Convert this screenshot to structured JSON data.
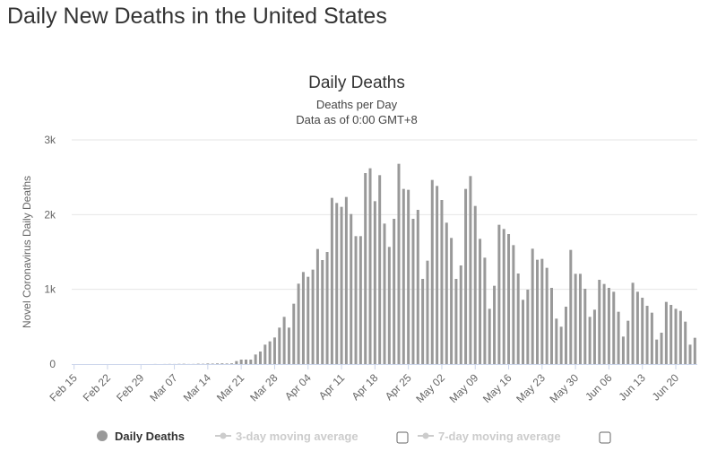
{
  "page_title": "Daily New Deaths in the United States",
  "chart_data": {
    "type": "bar",
    "title": "Daily Deaths",
    "subtitle_lines": [
      "Deaths per Day",
      "Data as of 0:00 GMT+8"
    ],
    "xlabel": "",
    "ylabel": "Novel Coronavirus Daily Deaths",
    "ylim": [
      0,
      3000
    ],
    "y_ticks": [
      {
        "value": 0,
        "label": "0"
      },
      {
        "value": 1000,
        "label": "1k"
      },
      {
        "value": 2000,
        "label": "2k"
      },
      {
        "value": 3000,
        "label": "3k"
      }
    ],
    "x_start": "Feb 15",
    "x_end": "Jun 22",
    "x_ticks": [
      {
        "day": 0,
        "label": "Feb 15"
      },
      {
        "day": 7,
        "label": "Feb 22"
      },
      {
        "day": 14,
        "label": "Feb 29"
      },
      {
        "day": 21,
        "label": "Mar 07"
      },
      {
        "day": 28,
        "label": "Mar 14"
      },
      {
        "day": 35,
        "label": "Mar 21"
      },
      {
        "day": 42,
        "label": "Mar 28"
      },
      {
        "day": 49,
        "label": "Apr 04"
      },
      {
        "day": 56,
        "label": "Apr 11"
      },
      {
        "day": 63,
        "label": "Apr 18"
      },
      {
        "day": 70,
        "label": "Apr 25"
      },
      {
        "day": 77,
        "label": "May 02"
      },
      {
        "day": 84,
        "label": "May 09"
      },
      {
        "day": 91,
        "label": "May 16"
      },
      {
        "day": 98,
        "label": "May 23"
      },
      {
        "day": 105,
        "label": "May 30"
      },
      {
        "day": 112,
        "label": "Jun 06"
      },
      {
        "day": 119,
        "label": "Jun 13"
      },
      {
        "day": 126,
        "label": "Jun 20"
      }
    ],
    "grid": true,
    "legend_position": "bottom",
    "series": [
      {
        "name": "Daily Deaths",
        "color": "#999999",
        "enabled": true,
        "values": [
          0,
          0,
          0,
          0,
          0,
          0,
          0,
          0,
          0,
          0,
          0,
          0,
          0,
          0,
          0,
          0,
          0,
          1,
          0,
          1,
          2,
          1,
          3,
          4,
          1,
          2,
          5,
          4,
          8,
          7,
          9,
          10,
          8,
          10,
          40,
          60,
          60,
          60,
          128,
          168,
          260,
          304,
          356,
          488,
          632,
          488,
          808,
          1076,
          1232,
          1168,
          1264,
          1540,
          1392,
          1500,
          2224,
          2156,
          2104,
          2236,
          2008,
          1712,
          1712,
          2556,
          2620,
          2180,
          2528,
          1880,
          1568,
          1944,
          2680,
          2344,
          2332,
          1944,
          2064,
          1140,
          1384,
          2464,
          2384,
          2196,
          1892,
          1688,
          1140,
          1320,
          2344,
          2516,
          2116,
          1676,
          1424,
          740,
          1048,
          1864,
          1808,
          1740,
          1592,
          1212,
          860,
          996,
          1544,
          1396,
          1408,
          1288,
          1020,
          608,
          500,
          768,
          1528,
          1208,
          1208,
          1008,
          632,
          728,
          1128,
          1072,
          1020,
          968,
          700,
          368,
          580,
          1088,
          968,
          888,
          780,
          688,
          328,
          420,
          832,
          792,
          740,
          712,
          568,
          260,
          352
        ]
      },
      {
        "name": "3-day moving average",
        "color": "#cccccc",
        "enabled": false
      },
      {
        "name": "7-day moving average",
        "color": "#cccccc",
        "enabled": false
      }
    ]
  }
}
